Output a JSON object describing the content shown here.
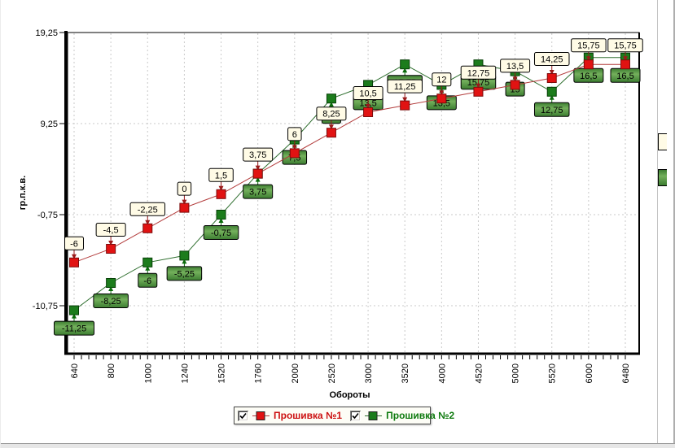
{
  "chart_data": {
    "type": "line",
    "title": "",
    "xlabel": "Обороты",
    "ylabel": "гр.п.к.в.",
    "categories": [
      "640",
      "800",
      "1000",
      "1240",
      "1520",
      "1760",
      "2000",
      "2520",
      "3000",
      "3520",
      "4000",
      "4520",
      "5000",
      "5520",
      "6000",
      "6480"
    ],
    "y_ticks": [
      {
        "value": 19.25,
        "label": "19,25"
      },
      {
        "value": 9.25,
        "label": "9,25"
      },
      {
        "value": -0.75,
        "label": "-0,75"
      },
      {
        "value": -10.75,
        "label": "-10,75"
      }
    ],
    "ylim": [
      -16.4,
      19.25
    ],
    "grid": "dashed",
    "legend_position": "bottom-center",
    "series": [
      {
        "name": "Прошивка №1",
        "marker": "square",
        "marker_color": "#e11212",
        "marker_border": "#7c0c0c",
        "line_color": "#b23a3a",
        "arrow_color": "#9b1b1b",
        "label_box": "cream",
        "label_text_color": "#000000",
        "values": [
          -6,
          -4.5,
          -2.25,
          0,
          1.5,
          3.75,
          6,
          8.25,
          10.5,
          11.25,
          12,
          12.75,
          13.5,
          14.25,
          15.75,
          15.75
        ],
        "labels": [
          "-6",
          "-4,5",
          "-2,25",
          "0",
          "1,5",
          "3,75",
          "6",
          "8,25",
          "10,5",
          "11,25",
          "12",
          "12,75",
          "13,5",
          "14,25",
          "15,75",
          "15,75"
        ]
      },
      {
        "name": "Прошивка №2",
        "marker": "square",
        "marker_color": "#1c7c1c",
        "marker_border": "#063f06",
        "line_color": "#2f6f2f",
        "arrow_color": "#0b6b0b",
        "label_box": "green",
        "label_text_color": "#edf23c",
        "values": [
          -11.25,
          -8.25,
          -6,
          -5.25,
          -0.75,
          3.75,
          7.5,
          12,
          13.5,
          15.75,
          13.5,
          15.75,
          15,
          12.75,
          16.5,
          16.5
        ],
        "labels": [
          "-11,25",
          "-8,25",
          "-6",
          "-5,25",
          "-0,75",
          "3,75",
          "7,5",
          "12",
          "13,5",
          "15,75",
          "13,5",
          "15,75",
          "15",
          "12,75",
          "16,5",
          "16,5"
        ]
      }
    ],
    "label_box_colors": {
      "cream_bg": "#fffbe6",
      "cream_border": "#000000",
      "green_bg_edge": "#3c7d31",
      "green_bg_mid": "#74b05c",
      "green_border": "#000000"
    },
    "grid_color": "#c9c9c9",
    "axis_color": "#000000"
  },
  "legend": {
    "items": [
      {
        "label": "Прошивка №1",
        "checked": true,
        "text_color": "#cc1111",
        "marker_color": "#e11212",
        "line_color": "#b23a3a"
      },
      {
        "label": "Прошивка №2",
        "checked": true,
        "text_color": "#0e7a0e",
        "marker_color": "#1c7c1c",
        "line_color": "#2f6f2f"
      }
    ]
  }
}
